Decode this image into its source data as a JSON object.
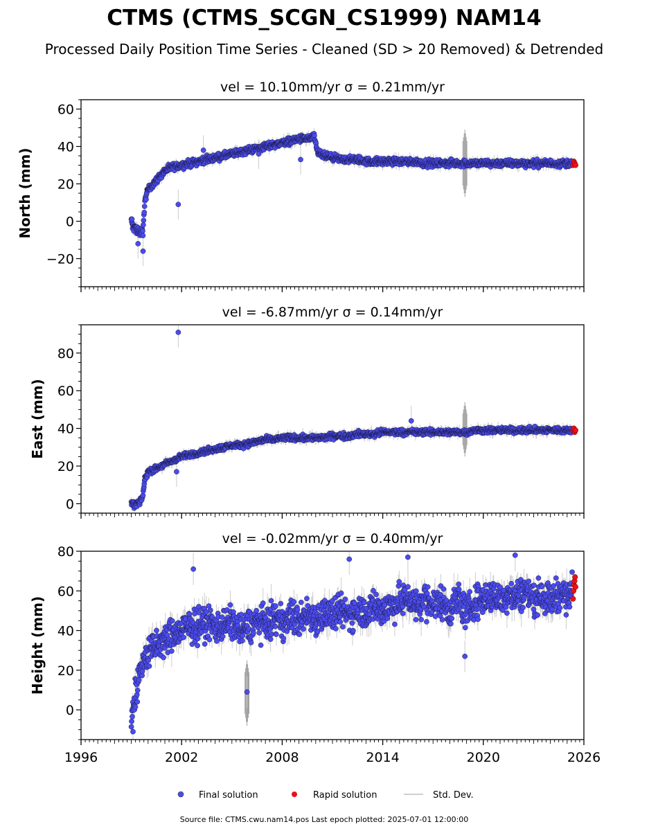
{
  "title": "CTMS (CTMS_SCGN_CS1999) NAM14",
  "subtitle": "Processed Daily Position Time Series - Cleaned (SD > 20 Removed) & Detrended",
  "footer": "Source file: CTMS.cwu.nam14.pos  Last epoch plotted: 2025-07-01 12:00:00",
  "colors": {
    "final": "#4b4bef",
    "rapid": "#e8121b",
    "std": "#bfbfbf",
    "edge": "#000000"
  },
  "chart_data": [
    {
      "type": "scatter",
      "panel_title": "vel = 10.10mm/yr   σ = 0.21mm/yr",
      "ylabel": "North (mm)",
      "xlim": [
        1996,
        2026
      ],
      "ylim": [
        -35,
        65
      ],
      "yticks": [
        -20,
        0,
        20,
        40,
        60
      ],
      "ytick_labels": [
        "−20",
        "0",
        "20",
        "40",
        "60"
      ],
      "grid": false,
      "series": [
        {
          "name": "Final solution",
          "x": [
            1999.0,
            1999.1,
            1999.2,
            1999.3,
            1999.4,
            1999.5,
            1999.6,
            1999.7,
            1999.8,
            1999.9,
            2000.0,
            2000.2,
            2000.4,
            2000.6,
            2000.8,
            2001.0,
            2001.5,
            2002.0,
            2002.5,
            2003.0,
            2003.5,
            2004.0,
            2004.5,
            2005.0,
            2005.5,
            2006.0,
            2006.5,
            2007.0,
            2007.5,
            2008.0,
            2008.5,
            2009.0,
            2009.5,
            2009.9,
            2010.1,
            2010.5,
            2011.0,
            2011.5,
            2012.0,
            2012.5,
            2013.0,
            2013.5,
            2014.0,
            2014.5,
            2015.0,
            2015.5,
            2016.0,
            2016.5,
            2017.0,
            2017.5,
            2018.0,
            2018.5,
            2019.0,
            2019.5,
            2020.0,
            2020.5,
            2021.0,
            2021.5,
            2022.0,
            2022.5,
            2023.0,
            2023.5,
            2024.0,
            2024.5,
            2025.0,
            2025.3
          ],
          "y": [
            -1,
            -2,
            -3,
            -4,
            -5,
            -6,
            -7,
            -5,
            10,
            14,
            17,
            19,
            21,
            23,
            25,
            27,
            29,
            30,
            31,
            32,
            33,
            34,
            35,
            36,
            37,
            38,
            39,
            40,
            41,
            42,
            43,
            44,
            44,
            45,
            37,
            35,
            34,
            33,
            33,
            33,
            32,
            32,
            32,
            32,
            32,
            32,
            32,
            31,
            31,
            31,
            31,
            31,
            31,
            31,
            31,
            31,
            31,
            31,
            31,
            31,
            31,
            31,
            31,
            31,
            31,
            31
          ]
        },
        {
          "name": "Rapid solution",
          "x": [
            2025.35,
            2025.4,
            2025.45,
            2025.5
          ],
          "y": [
            30,
            32,
            31,
            30
          ]
        }
      ],
      "outliers": {
        "x": [
          2001.8,
          1999.4,
          1999.7,
          2003.3,
          2006.6,
          2009.1
        ],
        "y": [
          9,
          -12,
          -16,
          38,
          36,
          33
        ]
      },
      "std_spike": {
        "x": 2018.9,
        "y_low": 13,
        "y_high": 49
      }
    },
    {
      "type": "scatter",
      "panel_title": "vel = -6.87mm/yr   σ = 0.14mm/yr",
      "ylabel": "East (mm)",
      "xlim": [
        1996,
        2026
      ],
      "ylim": [
        -5,
        95
      ],
      "yticks": [
        0,
        20,
        40,
        60,
        80
      ],
      "ytick_labels": [
        "0",
        "20",
        "40",
        "60",
        "80"
      ],
      "grid": false,
      "series": [
        {
          "name": "Final solution",
          "x": [
            1999.0,
            1999.1,
            1999.2,
            1999.3,
            1999.4,
            1999.5,
            1999.6,
            1999.7,
            1999.8,
            1999.9,
            2000.0,
            2000.3,
            2000.6,
            2001.0,
            2001.5,
            2002.0,
            2002.5,
            2003.0,
            2003.5,
            2004.0,
            2004.5,
            2005.0,
            2005.5,
            2006.0,
            2006.5,
            2007.0,
            2007.5,
            2008.0,
            2008.5,
            2009.0,
            2009.5,
            2010.0,
            2010.5,
            2011.0,
            2011.5,
            2012.0,
            2012.5,
            2013.0,
            2013.5,
            2014.0,
            2014.5,
            2015.0,
            2015.5,
            2016.0,
            2016.5,
            2017.0,
            2017.5,
            2018.0,
            2018.5,
            2019.0,
            2019.5,
            2020.0,
            2020.5,
            2021.0,
            2021.5,
            2022.0,
            2022.5,
            2023.0,
            2023.5,
            2024.0,
            2024.5,
            2025.0,
            2025.3
          ],
          "y": [
            0,
            0,
            -1,
            0,
            1,
            0,
            2,
            5,
            13,
            15,
            17,
            18,
            19,
            21,
            23,
            25,
            26,
            27,
            28,
            29,
            30,
            31,
            31,
            32,
            33,
            34,
            34,
            35,
            35,
            35,
            35,
            35,
            35,
            36,
            36,
            36,
            37,
            37,
            37,
            38,
            38,
            38,
            38,
            38,
            38,
            38,
            38,
            38,
            38,
            38,
            39,
            39,
            39,
            39,
            39,
            39,
            39,
            39,
            39,
            39,
            39,
            39,
            39
          ]
        },
        {
          "name": "Rapid solution",
          "x": [
            2025.35,
            2025.4,
            2025.45,
            2025.5
          ],
          "y": [
            39,
            40,
            38,
            39
          ]
        }
      ],
      "outliers": {
        "x": [
          2001.8,
          2001.7,
          2015.7
        ],
        "y": [
          91,
          17,
          44
        ]
      },
      "std_spike": {
        "x": 2018.9,
        "y_low": 25,
        "y_high": 54
      }
    },
    {
      "type": "scatter",
      "panel_title": "vel = -0.02mm/yr   σ = 0.40mm/yr",
      "ylabel": "Height (mm)",
      "xlim": [
        1996,
        2026
      ],
      "ylim": [
        -15,
        80
      ],
      "yticks": [
        0,
        20,
        40,
        60,
        80
      ],
      "ytick_labels": [
        "0",
        "20",
        "40",
        "60",
        "80"
      ],
      "xticks": [
        1996,
        2002,
        2008,
        2014,
        2020,
        2026
      ],
      "xtick_labels": [
        "1996",
        "2002",
        "2008",
        "2014",
        "2020",
        "2026"
      ],
      "grid": false,
      "series": [
        {
          "name": "Final solution",
          "x": [
            1999.0,
            1999.1,
            1999.2,
            1999.3,
            1999.4,
            1999.5,
            1999.6,
            1999.8,
            2000.0,
            2000.3,
            2000.6,
            2001.0,
            2001.5,
            2002.0,
            2002.5,
            2003.0,
            2003.5,
            2004.0,
            2004.5,
            2005.0,
            2005.5,
            2006.0,
            2006.5,
            2007.0,
            2007.5,
            2008.0,
            2008.5,
            2009.0,
            2009.5,
            2010.0,
            2010.5,
            2011.0,
            2011.5,
            2012.0,
            2012.5,
            2013.0,
            2013.5,
            2014.0,
            2014.5,
            2015.0,
            2015.5,
            2016.0,
            2016.5,
            2017.0,
            2017.5,
            2018.0,
            2018.5,
            2019.0,
            2019.5,
            2020.0,
            2020.5,
            2021.0,
            2021.5,
            2022.0,
            2022.5,
            2023.0,
            2023.5,
            2024.0,
            2024.5,
            2025.0,
            2025.3
          ],
          "y": [
            -5,
            2,
            6,
            10,
            14,
            18,
            22,
            26,
            29,
            31,
            33,
            35,
            38,
            40,
            42,
            43,
            44,
            42,
            43,
            44,
            40,
            42,
            45,
            43,
            46,
            44,
            47,
            45,
            48,
            46,
            49,
            47,
            50,
            48,
            51,
            49,
            52,
            50,
            53,
            54,
            57,
            52,
            56,
            53,
            55,
            50,
            56,
            49,
            54,
            56,
            58,
            55,
            59,
            57,
            60,
            56,
            58,
            55,
            59,
            57,
            60
          ]
        },
        {
          "name": "Rapid solution",
          "x": [
            2025.35,
            2025.38,
            2025.41,
            2025.44,
            2025.47,
            2025.5
          ],
          "y": [
            56,
            60,
            63,
            65,
            67,
            62
          ]
        }
      ],
      "outliers": {
        "x": [
          2005.9,
          2002.7,
          2012.0,
          2018.9,
          1999.1,
          2015.5,
          2021.9
        ],
        "y": [
          9,
          71,
          76,
          27,
          -11,
          77,
          78
        ]
      },
      "std_spike": {
        "x": 2005.9,
        "y_low": -8,
        "y_high": 25
      }
    }
  ],
  "legend": {
    "final_label": "Final solution",
    "rapid_label": "Rapid solution",
    "std_label": "Std. Dev."
  }
}
